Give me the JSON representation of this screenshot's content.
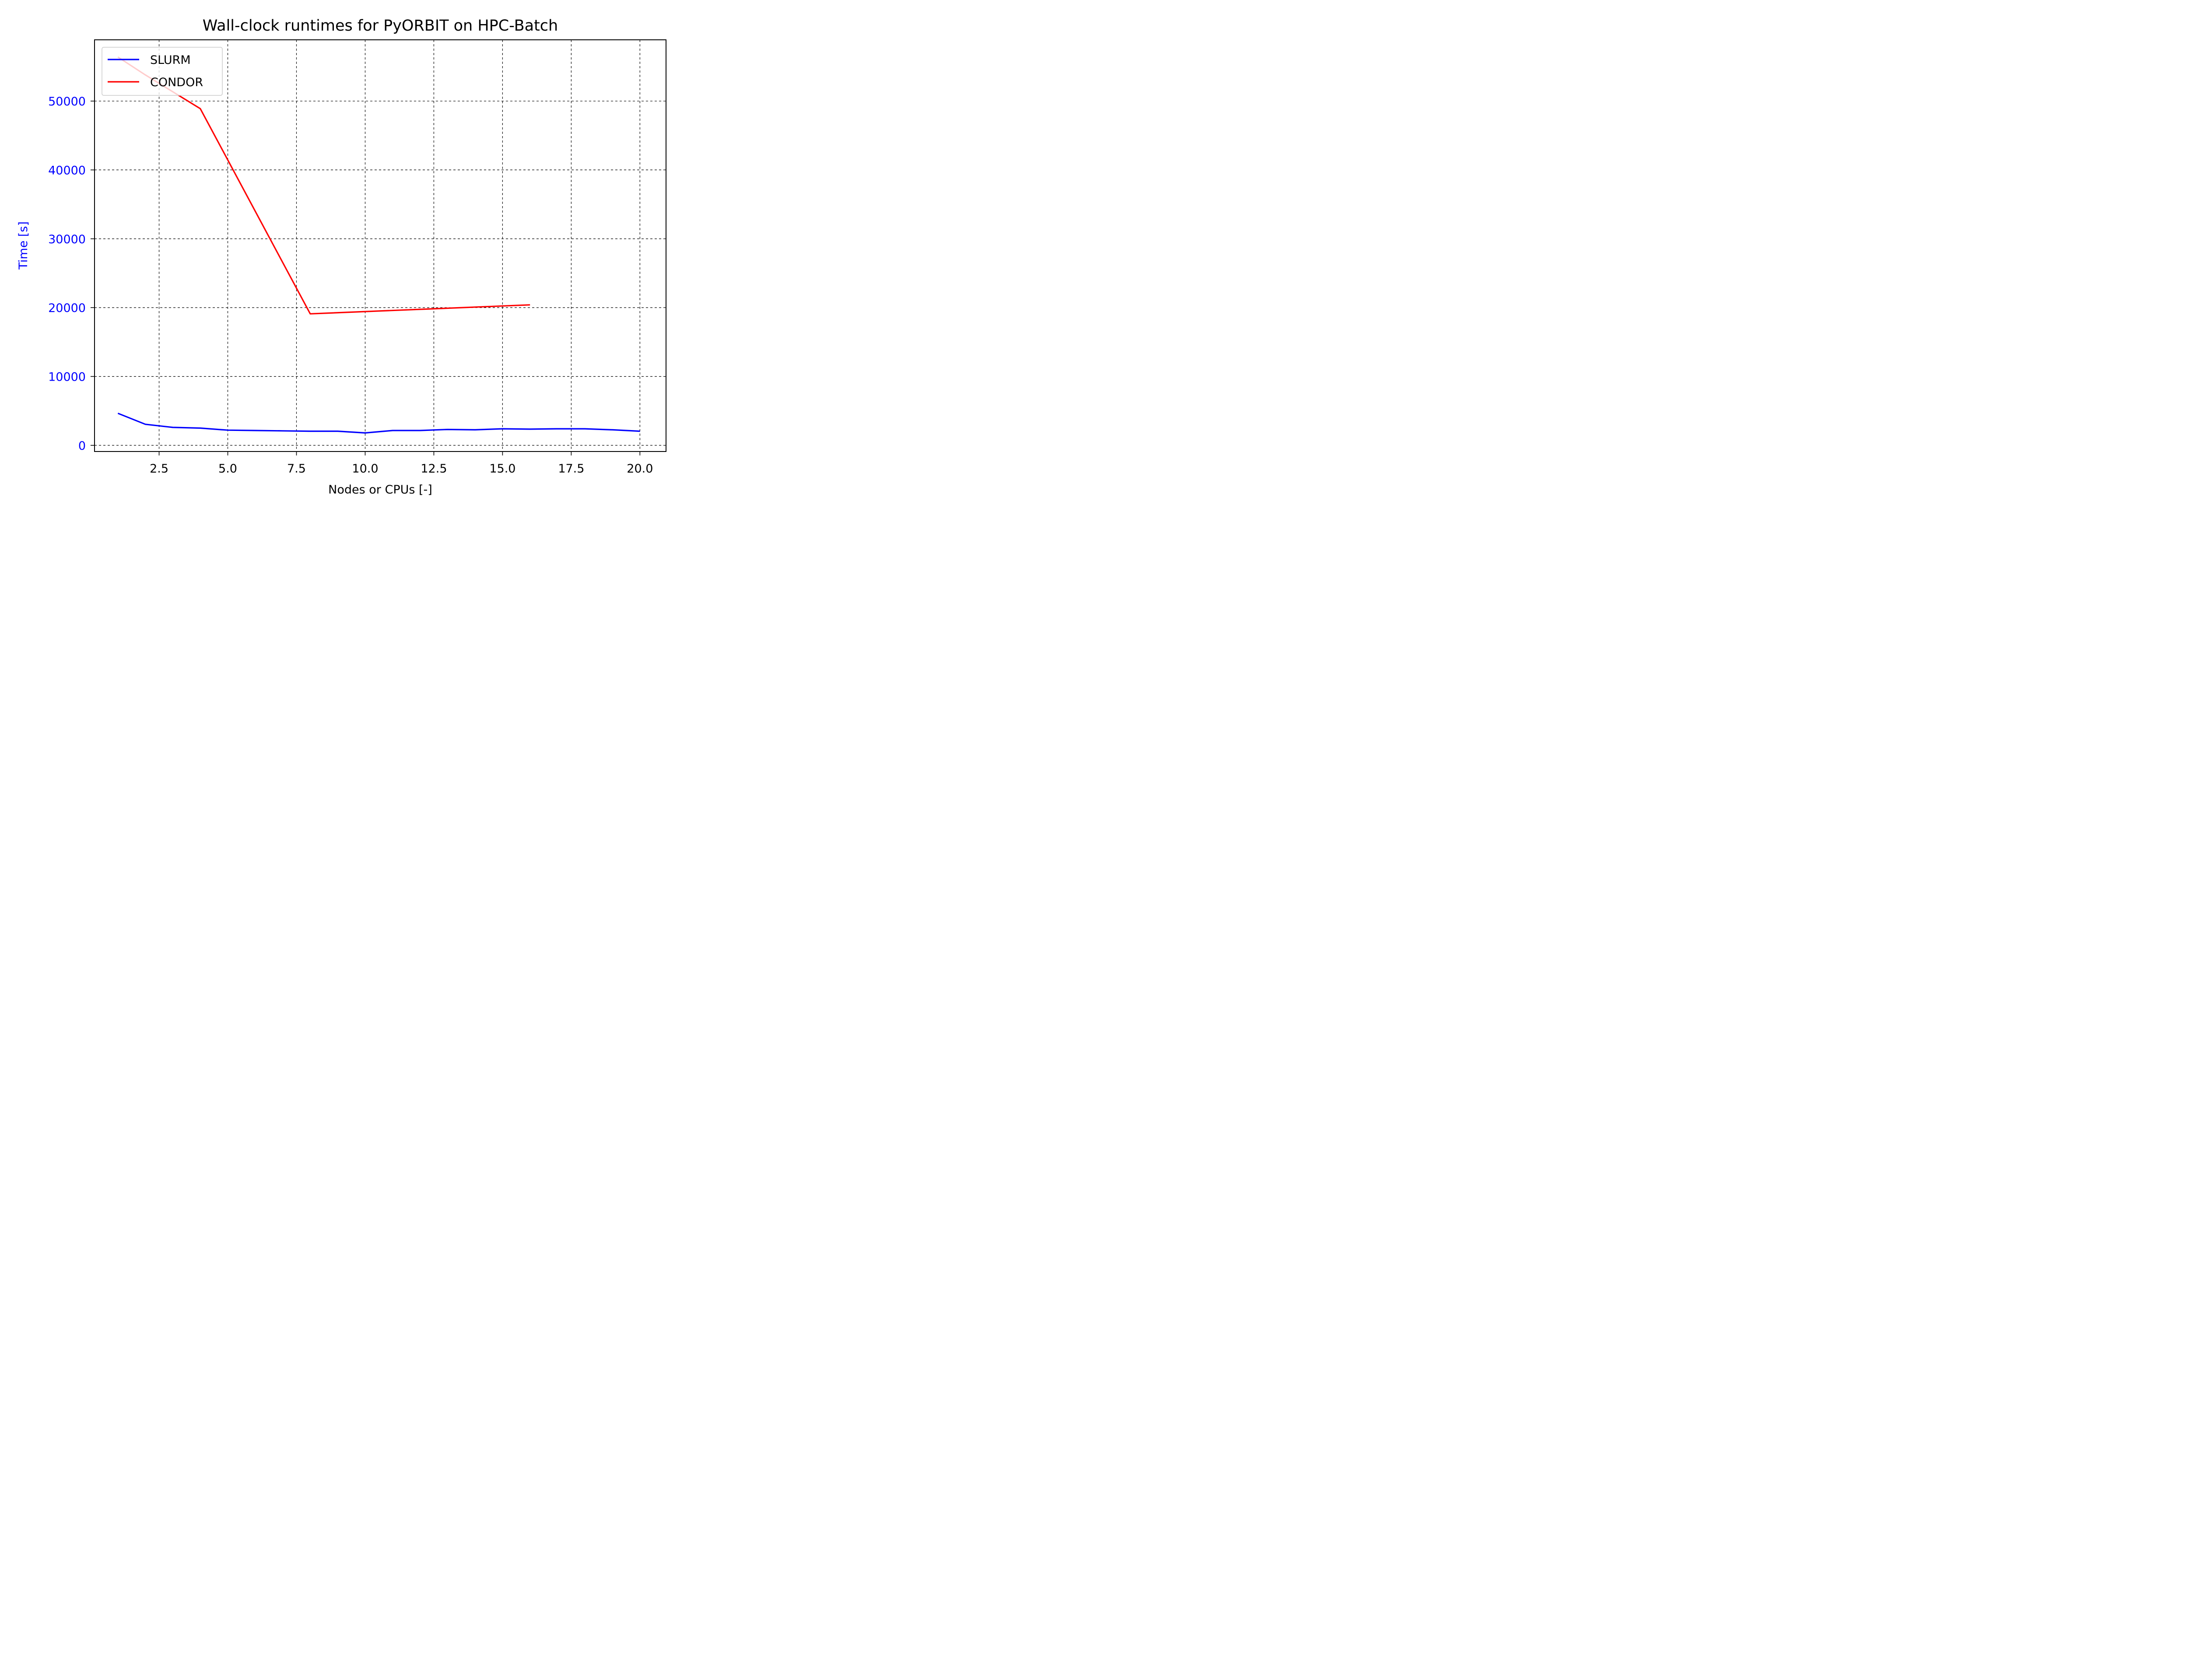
{
  "chart_data": {
    "type": "line",
    "title": "Wall-clock runtimes for PyORBIT on HPC-Batch",
    "xlabel": "Nodes or CPUs [-]",
    "ylabel": "Time [s]",
    "xlim": [
      0.15,
      20.95
    ],
    "ylim": [
      -900,
      58900
    ],
    "xticks": [
      2.5,
      5.0,
      7.5,
      10.0,
      12.5,
      15.0,
      17.5,
      20.0
    ],
    "xtick_labels": [
      "2.5",
      "5.0",
      "7.5",
      "10.0",
      "12.5",
      "15.0",
      "17.5",
      "20.0"
    ],
    "yticks": [
      0,
      10000,
      20000,
      30000,
      40000,
      50000
    ],
    "ytick_labels": [
      "0",
      "10000",
      "20000",
      "30000",
      "40000",
      "50000"
    ],
    "grid": true,
    "legend_position": "top-left",
    "series": [
      {
        "name": "SLURM",
        "color": "#0000ff",
        "x": [
          1,
          2,
          3,
          4,
          5,
          6,
          7,
          8,
          9,
          10,
          11,
          12,
          13,
          14,
          15,
          16,
          17,
          18,
          19,
          20
        ],
        "y": [
          4650,
          3050,
          2600,
          2500,
          2200,
          2150,
          2100,
          2050,
          2050,
          1800,
          2150,
          2150,
          2300,
          2250,
          2400,
          2350,
          2400,
          2400,
          2250,
          2050
        ]
      },
      {
        "name": "CONDOR",
        "color": "#ff0000",
        "x": [
          1,
          2,
          4,
          8,
          16
        ],
        "y": [
          56400,
          53800,
          48900,
          19100,
          20400
        ]
      }
    ],
    "tick_label_color_y": "#0000ff",
    "ylabel_color": "#0000ff"
  }
}
